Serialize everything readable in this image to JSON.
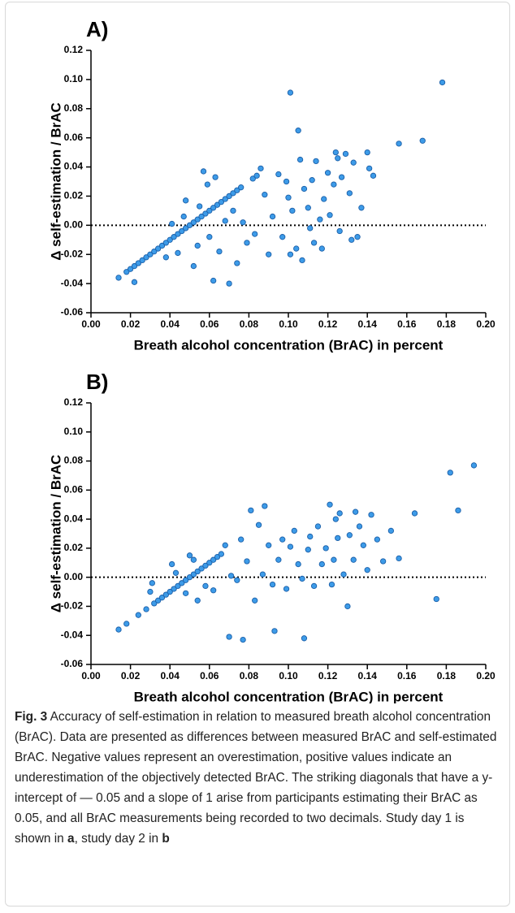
{
  "chart_data": [
    {
      "type": "scatter",
      "title": "A)",
      "x_label": "Breath alcohol concentration (BrAC) in percent",
      "y_label": "Δ self-estimation / BrAC",
      "color": "#3d9be8",
      "hline": 0,
      "xlim": [
        0,
        0.2
      ],
      "ylim": [
        -0.06,
        0.12
      ],
      "xticks": [
        {
          "value": 0,
          "label": "0.00"
        },
        0.02,
        0.04,
        0.06,
        0.08,
        {
          "value": 0.1,
          "label": "0.10"
        },
        0.12,
        0.14,
        0.16,
        0.18,
        {
          "value": 0.2,
          "label": "0.20"
        }
      ],
      "yticks": [
        -0.06,
        -0.04,
        -0.02,
        {
          "value": 0,
          "label": "0.00"
        },
        0.02,
        0.04,
        0.06,
        0.08,
        {
          "value": 0.1,
          "label": "0.10"
        },
        0.12
      ],
      "x": [
        0.014,
        0.018,
        0.02,
        0.022,
        0.024,
        0.026,
        0.028,
        0.03,
        0.032,
        0.034,
        0.036,
        0.038,
        0.04,
        0.042,
        0.044,
        0.046,
        0.048,
        0.05,
        0.052,
        0.054,
        0.056,
        0.058,
        0.06,
        0.062,
        0.064,
        0.066,
        0.068,
        0.07,
        0.072,
        0.074,
        0.076,
        0.082,
        0.084,
        0.022,
        0.038,
        0.041,
        0.044,
        0.047,
        0.048,
        0.052,
        0.054,
        0.055,
        0.057,
        0.059,
        0.06,
        0.062,
        0.063,
        0.065,
        0.068,
        0.07,
        0.072,
        0.074,
        0.077,
        0.079,
        0.083,
        0.086,
        0.088,
        0.09,
        0.092,
        0.095,
        0.097,
        0.099,
        0.1,
        0.101,
        0.101,
        0.102,
        0.104,
        0.105,
        0.106,
        0.107,
        0.108,
        0.11,
        0.111,
        0.112,
        0.113,
        0.114,
        0.116,
        0.117,
        0.118,
        0.12,
        0.121,
        0.123,
        0.124,
        0.125,
        0.126,
        0.127,
        0.129,
        0.131,
        0.132,
        0.133,
        0.135,
        0.137,
        0.14,
        0.141,
        0.143,
        0.156,
        0.168,
        0.178
      ],
      "y": [
        -0.036,
        -0.032,
        -0.03,
        -0.028,
        -0.026,
        -0.024,
        -0.022,
        -0.02,
        -0.018,
        -0.016,
        -0.014,
        -0.012,
        -0.01,
        -0.008,
        -0.006,
        -0.004,
        -0.002,
        0.0,
        0.002,
        0.004,
        0.006,
        0.008,
        0.01,
        0.012,
        0.014,
        0.016,
        0.018,
        0.02,
        0.022,
        0.024,
        0.026,
        0.032,
        0.034,
        -0.039,
        -0.022,
        0.001,
        -0.019,
        0.006,
        0.017,
        -0.028,
        -0.014,
        0.013,
        0.037,
        0.028,
        -0.008,
        -0.038,
        0.033,
        -0.018,
        0.003,
        -0.04,
        0.01,
        -0.026,
        0.002,
        -0.012,
        -0.006,
        0.039,
        0.021,
        -0.02,
        0.006,
        0.035,
        -0.008,
        0.03,
        0.019,
        -0.02,
        0.091,
        0.01,
        -0.016,
        0.065,
        0.045,
        -0.024,
        0.025,
        0.012,
        -0.002,
        0.031,
        -0.012,
        0.044,
        0.004,
        -0.016,
        0.018,
        0.036,
        0.007,
        0.028,
        0.05,
        0.046,
        -0.004,
        0.033,
        0.049,
        0.022,
        -0.01,
        0.043,
        -0.008,
        0.012,
        0.05,
        0.039,
        0.034,
        0.056,
        0.058,
        0.098
      ]
    },
    {
      "type": "scatter",
      "title": "B)",
      "x_label": "Breath alcohol concentration (BrAC) in percent",
      "y_label": "Δ self-estimation / BrAC",
      "color": "#3d9be8",
      "hline": 0,
      "xlim": [
        0,
        0.2
      ],
      "ylim": [
        -0.06,
        0.12
      ],
      "xticks": [
        {
          "value": 0,
          "label": "0.00"
        },
        0.02,
        0.04,
        0.06,
        0.08,
        {
          "value": 0.1,
          "label": "0.10"
        },
        0.12,
        0.14,
        0.16,
        0.18,
        {
          "value": 0.2,
          "label": "0.20"
        }
      ],
      "yticks": [
        -0.06,
        -0.04,
        -0.02,
        {
          "value": 0,
          "label": "0.00"
        },
        0.02,
        0.04,
        0.06,
        0.08,
        {
          "value": 0.1,
          "label": "0.10"
        },
        0.12
      ],
      "x": [
        0.014,
        0.024,
        0.028,
        0.032,
        0.034,
        0.036,
        0.038,
        0.04,
        0.042,
        0.044,
        0.046,
        0.048,
        0.05,
        0.052,
        0.054,
        0.056,
        0.058,
        0.06,
        0.062,
        0.064,
        0.066,
        0.018,
        0.03,
        0.031,
        0.041,
        0.043,
        0.048,
        0.05,
        0.052,
        0.054,
        0.058,
        0.062,
        0.068,
        0.07,
        0.071,
        0.074,
        0.076,
        0.077,
        0.079,
        0.081,
        0.083,
        0.085,
        0.087,
        0.088,
        0.09,
        0.092,
        0.093,
        0.095,
        0.097,
        0.099,
        0.101,
        0.103,
        0.105,
        0.107,
        0.108,
        0.11,
        0.111,
        0.113,
        0.115,
        0.117,
        0.119,
        0.121,
        0.122,
        0.123,
        0.124,
        0.125,
        0.126,
        0.128,
        0.13,
        0.131,
        0.133,
        0.134,
        0.136,
        0.138,
        0.14,
        0.142,
        0.145,
        0.148,
        0.152,
        0.156,
        0.164,
        0.175,
        0.182,
        0.186,
        0.194
      ],
      "y": [
        -0.036,
        -0.026,
        -0.022,
        -0.018,
        -0.016,
        -0.014,
        -0.012,
        -0.01,
        -0.008,
        -0.006,
        -0.004,
        -0.002,
        0.0,
        0.002,
        0.004,
        0.006,
        0.008,
        0.01,
        0.012,
        0.014,
        0.016,
        -0.032,
        -0.01,
        -0.004,
        0.009,
        0.003,
        -0.011,
        0.015,
        0.012,
        -0.016,
        -0.006,
        -0.009,
        0.022,
        -0.041,
        0.001,
        -0.002,
        0.026,
        -0.043,
        0.011,
        0.046,
        -0.016,
        0.036,
        0.002,
        0.049,
        0.022,
        -0.005,
        -0.037,
        0.012,
        0.026,
        -0.008,
        0.021,
        0.032,
        0.009,
        -0.001,
        -0.042,
        0.019,
        0.028,
        -0.006,
        0.035,
        0.009,
        0.02,
        0.05,
        -0.005,
        0.012,
        0.04,
        0.027,
        0.044,
        0.002,
        -0.02,
        0.029,
        0.012,
        0.045,
        0.035,
        0.022,
        0.005,
        0.043,
        0.026,
        0.011,
        0.032,
        0.013,
        0.044,
        -0.015,
        0.072,
        0.046,
        0.077
      ]
    }
  ],
  "caption": {
    "label": "Fig. 3",
    "body": " Accuracy of self-estimation in relation to measured breath alcohol concentration (BrAC). Data are presented as differences between measured BrAC and self-estimated BrAC. Negative values represent an overestimation, positive values indicate an underestimation of the objectively detected BrAC. The striking diagonals that have a y-intercept of — 0.05 and a slope of 1 arise from participants estimating their BrAC as 0.05, and all BrAC measurements being recorded to two decimals. Study day 1 is shown in ",
    "panel_a": "a",
    "between": ", study day 2 in ",
    "panel_b": "b"
  }
}
